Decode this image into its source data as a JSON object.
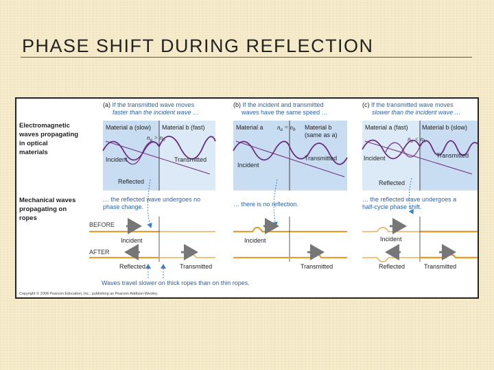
{
  "slide": {
    "title": "PHASE SHIFT DURING REFLECTION"
  },
  "figure": {
    "left_heading": [
      "Electromagnetic",
      "waves propagating",
      "in optical",
      "materials"
    ],
    "mech_heading": [
      "Mechanical waves",
      "propagating on",
      "ropes"
    ],
    "before_label": "BEFORE",
    "after_label": "AFTER",
    "panels": [
      {
        "caption_letter": "(a)",
        "caption": [
          "If the transmitted wave moves",
          "faster than the incident wave …"
        ],
        "material_a": "Material a (slow)",
        "material_b": "Material b (fast)",
        "relation": "na > nb",
        "incident": "Incident",
        "transmitted": "Transmitted",
        "reflected": "Reflected",
        "outcome": [
          "… the reflected wave undergoes no",
          "phase change."
        ],
        "rope_incident": "Incident",
        "rope_reflected": "Reflected",
        "rope_transmitted": "Transmitted"
      },
      {
        "caption_letter": "(b)",
        "caption": [
          "If the incident and transmitted",
          "waves have the same speed …"
        ],
        "material_a": "Material a",
        "material_b": "Material b",
        "material_b_note": "(same as a)",
        "relation": "na = nb",
        "incident": "Incident",
        "transmitted": "Transmitted",
        "outcome": [
          "… there is no reflection."
        ],
        "rope_incident": "Incident",
        "rope_transmitted": "Transmitted"
      },
      {
        "caption_letter": "(c)",
        "caption": [
          "If the transmitted wave moves",
          "slower than the incident wave …"
        ],
        "material_a": "Material a (fast)",
        "material_b": "Material b (slow)",
        "relation": "na < nb",
        "incident": "Incident",
        "transmitted": "Transmitted",
        "reflected": "Reflected",
        "outcome": [
          "… the reflected wave undergoes a",
          "half-cycle phase shift."
        ],
        "rope_incident": "Incident",
        "rope_reflected": "Reflected",
        "rope_transmitted": "Transmitted"
      }
    ],
    "bottom_note": "Waves travel slower on thick ropes than on thin ropes.",
    "copyright": "Copyright © 2008 Pearson Education, Inc., publishing as Pearson Addison-Wesley."
  },
  "colors": {
    "panel_fill": "#c9ddf2",
    "wave": "#6a2a7a",
    "rope": "#e0a030",
    "caption_blue": "#2a62a8",
    "arrow_blue": "#3a80c0"
  }
}
